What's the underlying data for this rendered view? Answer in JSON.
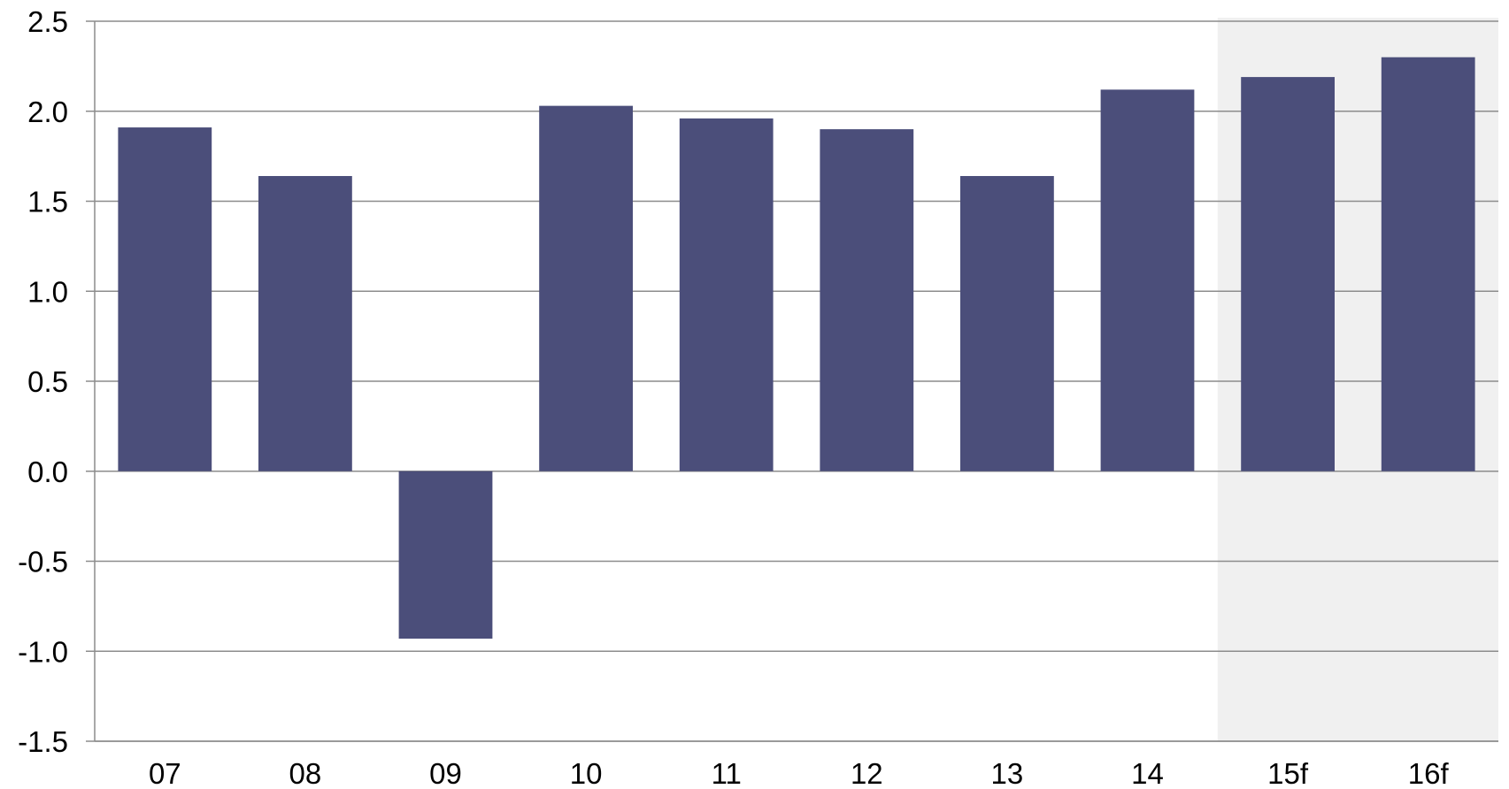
{
  "chart_data": {
    "type": "bar",
    "title": "",
    "xlabel": "",
    "ylabel": "",
    "categories": [
      "07",
      "08",
      "09",
      "10",
      "11",
      "12",
      "13",
      "14",
      "15f",
      "16f"
    ],
    "values": [
      1.91,
      1.64,
      -0.93,
      2.03,
      1.96,
      1.9,
      1.64,
      2.12,
      2.19,
      2.3
    ],
    "ylim": [
      -1.5,
      2.5
    ],
    "yticks": [
      "2.5",
      "2.0",
      "1.5",
      "1.0",
      "0.5",
      "0.0",
      "-0.5",
      "-1.0",
      "-1.5"
    ],
    "ytick_values": [
      2.5,
      2.0,
      1.5,
      1.0,
      0.5,
      0.0,
      -0.5,
      -1.0,
      -1.5
    ],
    "grid": true,
    "forecast_categories": [
      "15f",
      "16f"
    ],
    "colors": {
      "bar": "#4b4e7a",
      "forecast_shade": "#f0f0f0",
      "grid": "#8c8c8c"
    }
  }
}
